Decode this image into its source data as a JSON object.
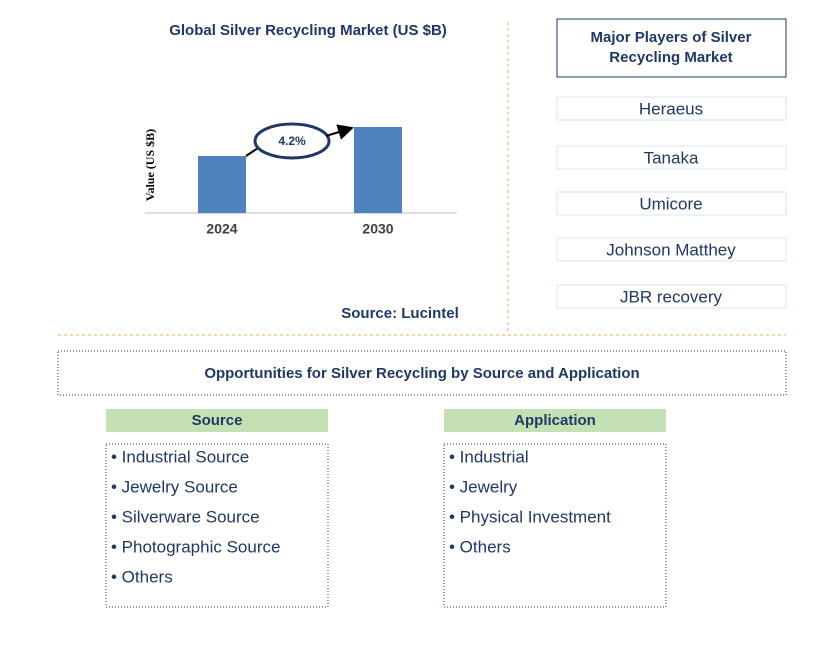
{
  "chart_data": {
    "type": "bar",
    "title": "Global Silver Recycling Market (US $B)",
    "ylabel": "Value (US $B)",
    "categories": [
      "2024",
      "2030"
    ],
    "values": [
      5.7,
      8.6
    ],
    "color": "#4f81bd",
    "ylim": [
      0,
      10
    ],
    "annotation": "4.2%",
    "source": "Source: Lucintel"
  },
  "players": {
    "title": "Major Players of Silver Recycling Market",
    "items": [
      "Heraeus",
      "Tanaka",
      "Umicore",
      "Johnson Matthey",
      "JBR recovery"
    ]
  },
  "opportunities": {
    "title": "Opportunities for Silver Recycling by Source and Application",
    "source": {
      "title": "Source",
      "items": [
        "• Industrial Source",
        "• Jewelry Source",
        "• Silverware Source",
        "• Photographic Source",
        "• Others"
      ]
    },
    "application": {
      "title": "Application",
      "items": [
        "• Industrial",
        "• Jewelry",
        "• Physical Investment",
        "• Others"
      ]
    }
  }
}
